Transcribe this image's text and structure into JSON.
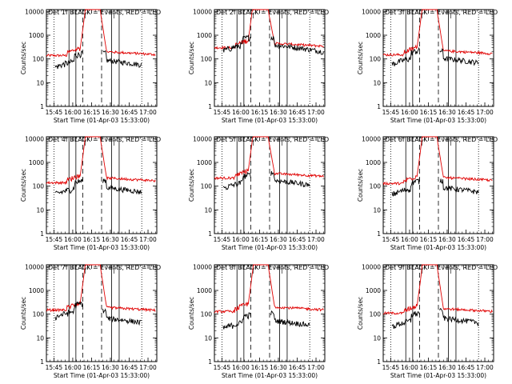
{
  "chart_data": {
    "type": "line",
    "x_unit": "minutes after 15:33:00",
    "x_range": [
      6,
      94
    ],
    "y_range": [
      1,
      12000
    ],
    "y_scale": "log",
    "ylabel": "Counts/sec",
    "xlabel": "Start Time (01-Apr-03 15:33:00)",
    "tick_labels": [
      "15:45",
      "16:00",
      "16:15",
      "16:30",
      "16:45",
      "17:00"
    ],
    "tick_positions": [
      12,
      27,
      42,
      57,
      72,
      87
    ],
    "y_tick_labels": [
      "1",
      "10",
      "100",
      "1000",
      "10000"
    ],
    "y_tick_values": [
      1,
      10,
      100,
      1000,
      10000
    ],
    "markers": {
      "dotted": [
        12,
        82
      ],
      "solid": [
        24,
        29.5,
        58,
        64
      ],
      "dashed": [
        35,
        50
      ]
    },
    "panels": [
      {
        "title": "Det 1f BLACK = Events, RED = LLD",
        "red_base": 140,
        "black_base": 45,
        "black_post": 90,
        "red_post": 200
      },
      {
        "title": "Det 2f BLACK = Events, RED = LLD",
        "red_base": 300,
        "black_base": 220,
        "black_post": 400,
        "red_post": 450
      },
      {
        "title": "Det 3f BLACK = Events, RED = LLD",
        "red_base": 150,
        "black_base": 60,
        "black_post": 110,
        "red_post": 220
      },
      {
        "title": "Det 4f BLACK = Events, RED = LLD",
        "red_base": 140,
        "black_base": 45,
        "black_post": 90,
        "red_post": 220
      },
      {
        "title": "Det 5f BLACK = Events, RED = LLD",
        "red_base": 220,
        "black_base": 80,
        "black_post": 180,
        "red_post": 340
      },
      {
        "title": "Det 6f BLACK = Events, RED = LLD",
        "red_base": 130,
        "black_base": 45,
        "black_post": 90,
        "red_post": 230
      },
      {
        "title": "Det 7f BLACK = Events, RED = LLD",
        "red_base": 150,
        "black_base": 75,
        "black_post": 70,
        "red_post": 190
      },
      {
        "title": "Det 8f BLACK = Events, RED = LLD",
        "red_base": 130,
        "black_base": 25,
        "black_post": 55,
        "red_post": 200
      },
      {
        "title": "Det 9f BLACK = Events, RED = LLD",
        "red_base": 110,
        "black_base": 30,
        "black_post": 70,
        "red_post": 170
      }
    ]
  }
}
